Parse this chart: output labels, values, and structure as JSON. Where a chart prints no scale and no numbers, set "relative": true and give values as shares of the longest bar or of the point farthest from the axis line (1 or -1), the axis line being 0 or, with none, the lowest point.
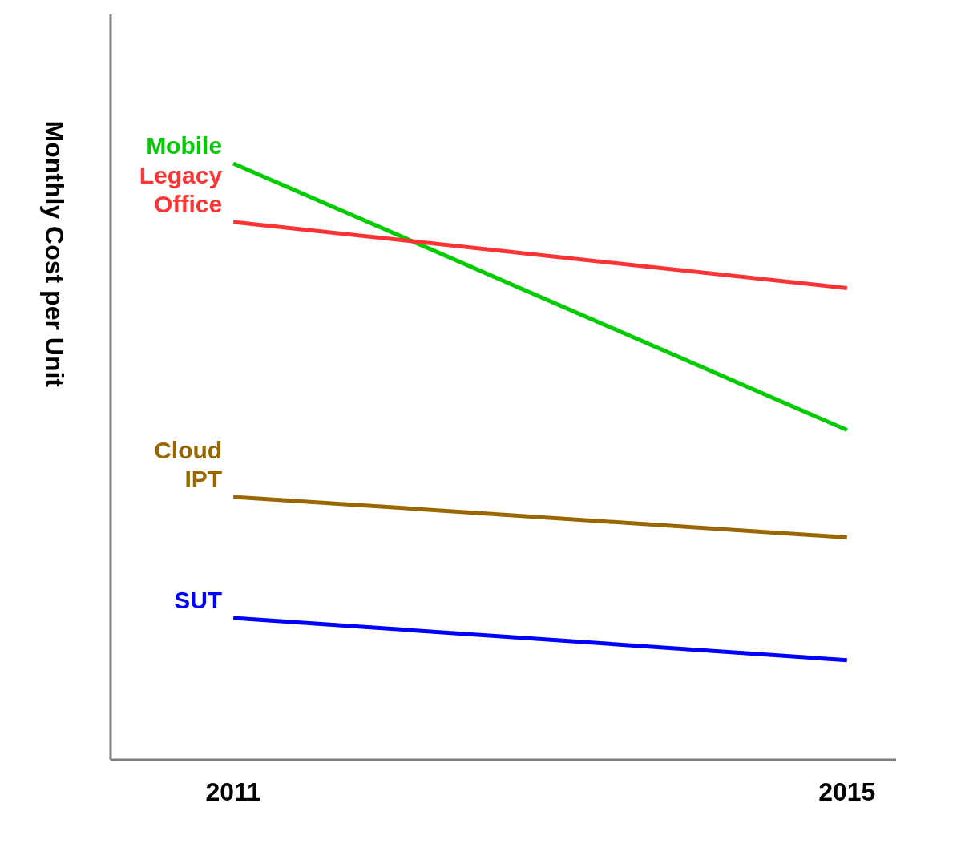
{
  "chart_data": {
    "type": "line",
    "relative": true,
    "ylabel": "Monthly Cost per Unit",
    "categories": [
      "2011",
      "2015"
    ],
    "legend": false,
    "grid": false,
    "marker": "none",
    "line_style": "solid",
    "series": [
      {
        "name": "Mobile",
        "color": "#00cc00",
        "values": [
          1,
          0.553
        ]
      },
      {
        "name": "Legacy Office",
        "color": "#ff3333",
        "values": [
          0.902,
          0.791
        ]
      },
      {
        "name": "Cloud IPT",
        "color": "#996600",
        "values": [
          0.441,
          0.373
        ]
      },
      {
        "name": "SUT",
        "color": "#0000ff",
        "values": [
          0.238,
          0.167
        ]
      }
    ]
  }
}
